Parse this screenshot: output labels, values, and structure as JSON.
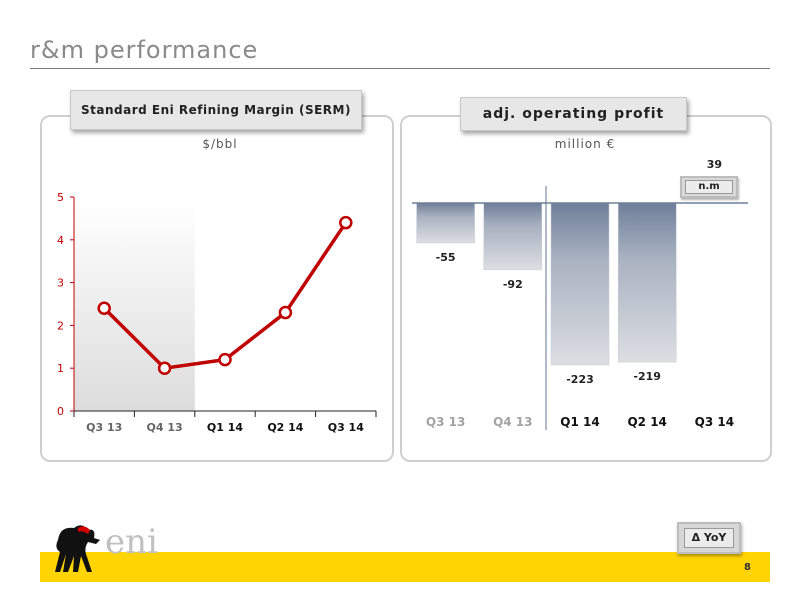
{
  "page": {
    "title": "r&m performance",
    "page_number": "8"
  },
  "left": {
    "header": "Standard Eni Refining Margin (SERM)",
    "unit": "$/bbl"
  },
  "right": {
    "header": "adj. operating profit",
    "unit": "million €",
    "na_label": "n.m"
  },
  "footer": {
    "yoy_label": "Δ YoY",
    "logo_text": "eni"
  },
  "colors": {
    "line": "#c00000",
    "accent_yellow": "#ffd400",
    "axis_red": "#c00000",
    "bar": "#b7bec8"
  },
  "icons": {
    "logo": "eni-six-legged-dog-icon"
  },
  "chart_data": [
    {
      "type": "line",
      "title": "Standard Eni Refining Margin (SERM)",
      "ylabel": "$/bbl",
      "categories": [
        "Q3 13",
        "Q4 13",
        "Q1 14",
        "Q2 14",
        "Q3 14"
      ],
      "values": [
        2.4,
        1.0,
        1.2,
        2.3,
        4.4
      ],
      "yticks": [
        0,
        1,
        2,
        3,
        4,
        5
      ],
      "ylim": [
        0,
        5
      ],
      "grid": false,
      "shaded_categories": [
        "Q3 13",
        "Q4 13"
      ]
    },
    {
      "type": "bar",
      "title": "adj. operating profit",
      "ylabel": "million €",
      "categories": [
        "Q3 13",
        "Q4 13",
        "Q1 14",
        "Q2 14",
        "Q3 14"
      ],
      "values": [
        -55,
        -92,
        -223,
        -219,
        39
      ],
      "value_labels": [
        "-55",
        "-92",
        "-223",
        "-219",
        "39"
      ],
      "highlight_categories": [
        "Q1 14",
        "Q2 14",
        "Q3 14"
      ]
    }
  ]
}
